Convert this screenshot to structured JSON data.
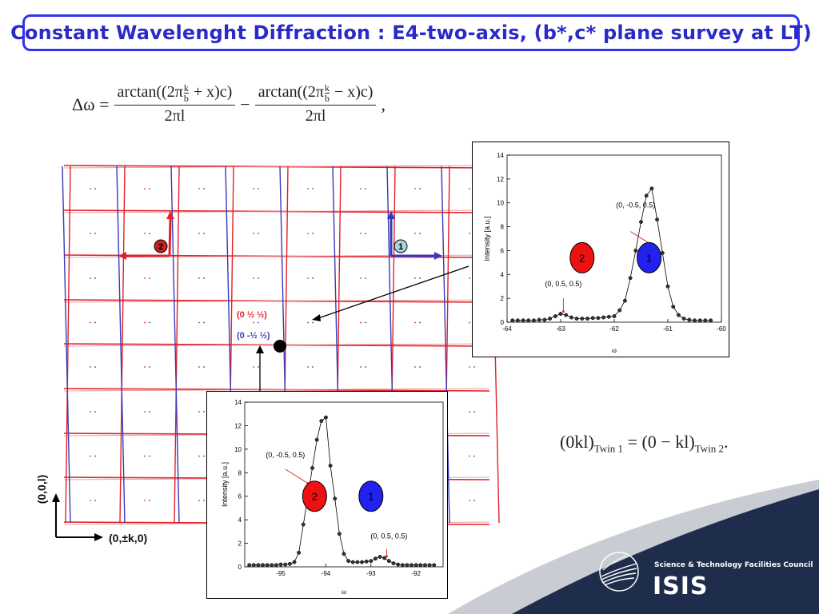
{
  "title": "Constant Wavelenght Diffraction : E4-two-axis, (b*,c* plane survey at LT)",
  "equation_main": {
    "lhs": "Δω =",
    "num1_a": "arctan((2π",
    "num1_b": "+ x)c)",
    "num2_a": "arctan((2π",
    "num2_b": "− x)c)",
    "frac_k": "k",
    "frac_b": "b",
    "den": "2πl",
    "minus": "−",
    "trail": ","
  },
  "equation_twin": {
    "lhs": "(0kl)",
    "lhs_sub": "Twin 1",
    "eq": " = ",
    "rhs": "(0 − kl)",
    "rhs_sub": "Twin 2",
    "trail": "."
  },
  "grid": {
    "label_red": "(0 ½ ½)",
    "label_blue": "(0 -½ ½)",
    "marker_red": "2",
    "marker_blue": "1",
    "axis_vertical": "(0,0,l)",
    "axis_horizontal": "(0,±k,0)",
    "red_color": "#e0202a",
    "blue_color": "#3a3ab8"
  },
  "logo": {
    "org": "Science & Technology Facilities Council",
    "name": "ISIS"
  },
  "chart_data": [
    {
      "type": "line",
      "xlabel": "ω",
      "ylabel": "Intensity [a.u.]",
      "xlim": [
        -64,
        -60
      ],
      "ylim": [
        0,
        14
      ],
      "xticks": [
        -64,
        -63,
        -62,
        -61,
        -60
      ],
      "yticks": [
        0,
        2,
        4,
        6,
        8,
        10,
        12,
        14
      ],
      "x": [
        -63.9,
        -63.8,
        -63.7,
        -63.6,
        -63.5,
        -63.4,
        -63.3,
        -63.2,
        -63.1,
        -63.0,
        -62.9,
        -62.8,
        -62.7,
        -62.6,
        -62.5,
        -62.4,
        -62.3,
        -62.2,
        -62.1,
        -62.0,
        -61.9,
        -61.8,
        -61.7,
        -61.6,
        -61.5,
        -61.4,
        -61.3,
        -61.2,
        -61.1,
        -61.0,
        -60.9,
        -60.8,
        -60.7,
        -60.6,
        -60.5,
        -60.4,
        -60.3,
        -60.2
      ],
      "values": [
        0.15,
        0.15,
        0.15,
        0.15,
        0.15,
        0.2,
        0.2,
        0.3,
        0.5,
        0.7,
        0.6,
        0.4,
        0.3,
        0.3,
        0.3,
        0.35,
        0.35,
        0.4,
        0.45,
        0.5,
        1.0,
        1.8,
        3.7,
        6.0,
        8.4,
        10.6,
        11.2,
        8.6,
        5.8,
        3.0,
        1.3,
        0.6,
        0.3,
        0.2,
        0.15,
        0.15,
        0.15,
        0.15
      ],
      "annotations": [
        {
          "text": "(0, -0.5, 0.5)",
          "x": -61.6,
          "y": 9.6
        },
        {
          "text": "(0, 0.5, 0.5)",
          "x": -62.95,
          "y": 3.0
        }
      ],
      "markers": [
        {
          "text": "2",
          "x": -62.6,
          "y": 5.4,
          "color": "#ee1111"
        },
        {
          "text": "1",
          "x": -61.35,
          "y": 5.4,
          "color": "#2222ee"
        }
      ]
    },
    {
      "type": "line",
      "xlabel": "ω",
      "ylabel": "Intensity [a.u.]",
      "xlim": [
        -95.8,
        -91.4
      ],
      "ylim": [
        0,
        14
      ],
      "xticks": [
        -95,
        -94,
        -93,
        -92
      ],
      "yticks": [
        0,
        2,
        4,
        6,
        8,
        10,
        12,
        14
      ],
      "x": [
        -95.7,
        -95.6,
        -95.5,
        -95.4,
        -95.3,
        -95.2,
        -95.1,
        -95.0,
        -94.9,
        -94.8,
        -94.7,
        -94.6,
        -94.5,
        -94.4,
        -94.3,
        -94.2,
        -94.1,
        -94.0,
        -93.9,
        -93.8,
        -93.7,
        -93.6,
        -93.5,
        -93.4,
        -93.3,
        -93.2,
        -93.1,
        -93.0,
        -92.9,
        -92.8,
        -92.7,
        -92.6,
        -92.5,
        -92.4,
        -92.3,
        -92.2,
        -92.1,
        -92.0,
        -91.9,
        -91.8,
        -91.7,
        -91.6
      ],
      "values": [
        0.15,
        0.15,
        0.15,
        0.15,
        0.15,
        0.15,
        0.15,
        0.2,
        0.2,
        0.25,
        0.4,
        1.2,
        3.6,
        6.0,
        8.4,
        10.8,
        12.4,
        12.7,
        8.6,
        5.8,
        2.8,
        1.1,
        0.5,
        0.4,
        0.4,
        0.4,
        0.45,
        0.5,
        0.7,
        0.85,
        0.75,
        0.5,
        0.3,
        0.2,
        0.15,
        0.15,
        0.15,
        0.15,
        0.15,
        0.15,
        0.15,
        0.15
      ],
      "annotations": [
        {
          "text": "(0, -0.5, 0.5)",
          "x": -94.9,
          "y": 9.3
        },
        {
          "text": "(0, 0.5, 0.5)",
          "x": -92.6,
          "y": 2.4
        }
      ],
      "markers": [
        {
          "text": "2",
          "x": -94.25,
          "y": 6.0,
          "color": "#ee1111"
        },
        {
          "text": "1",
          "x": -93.0,
          "y": 6.0,
          "color": "#2222ee"
        }
      ]
    }
  ]
}
